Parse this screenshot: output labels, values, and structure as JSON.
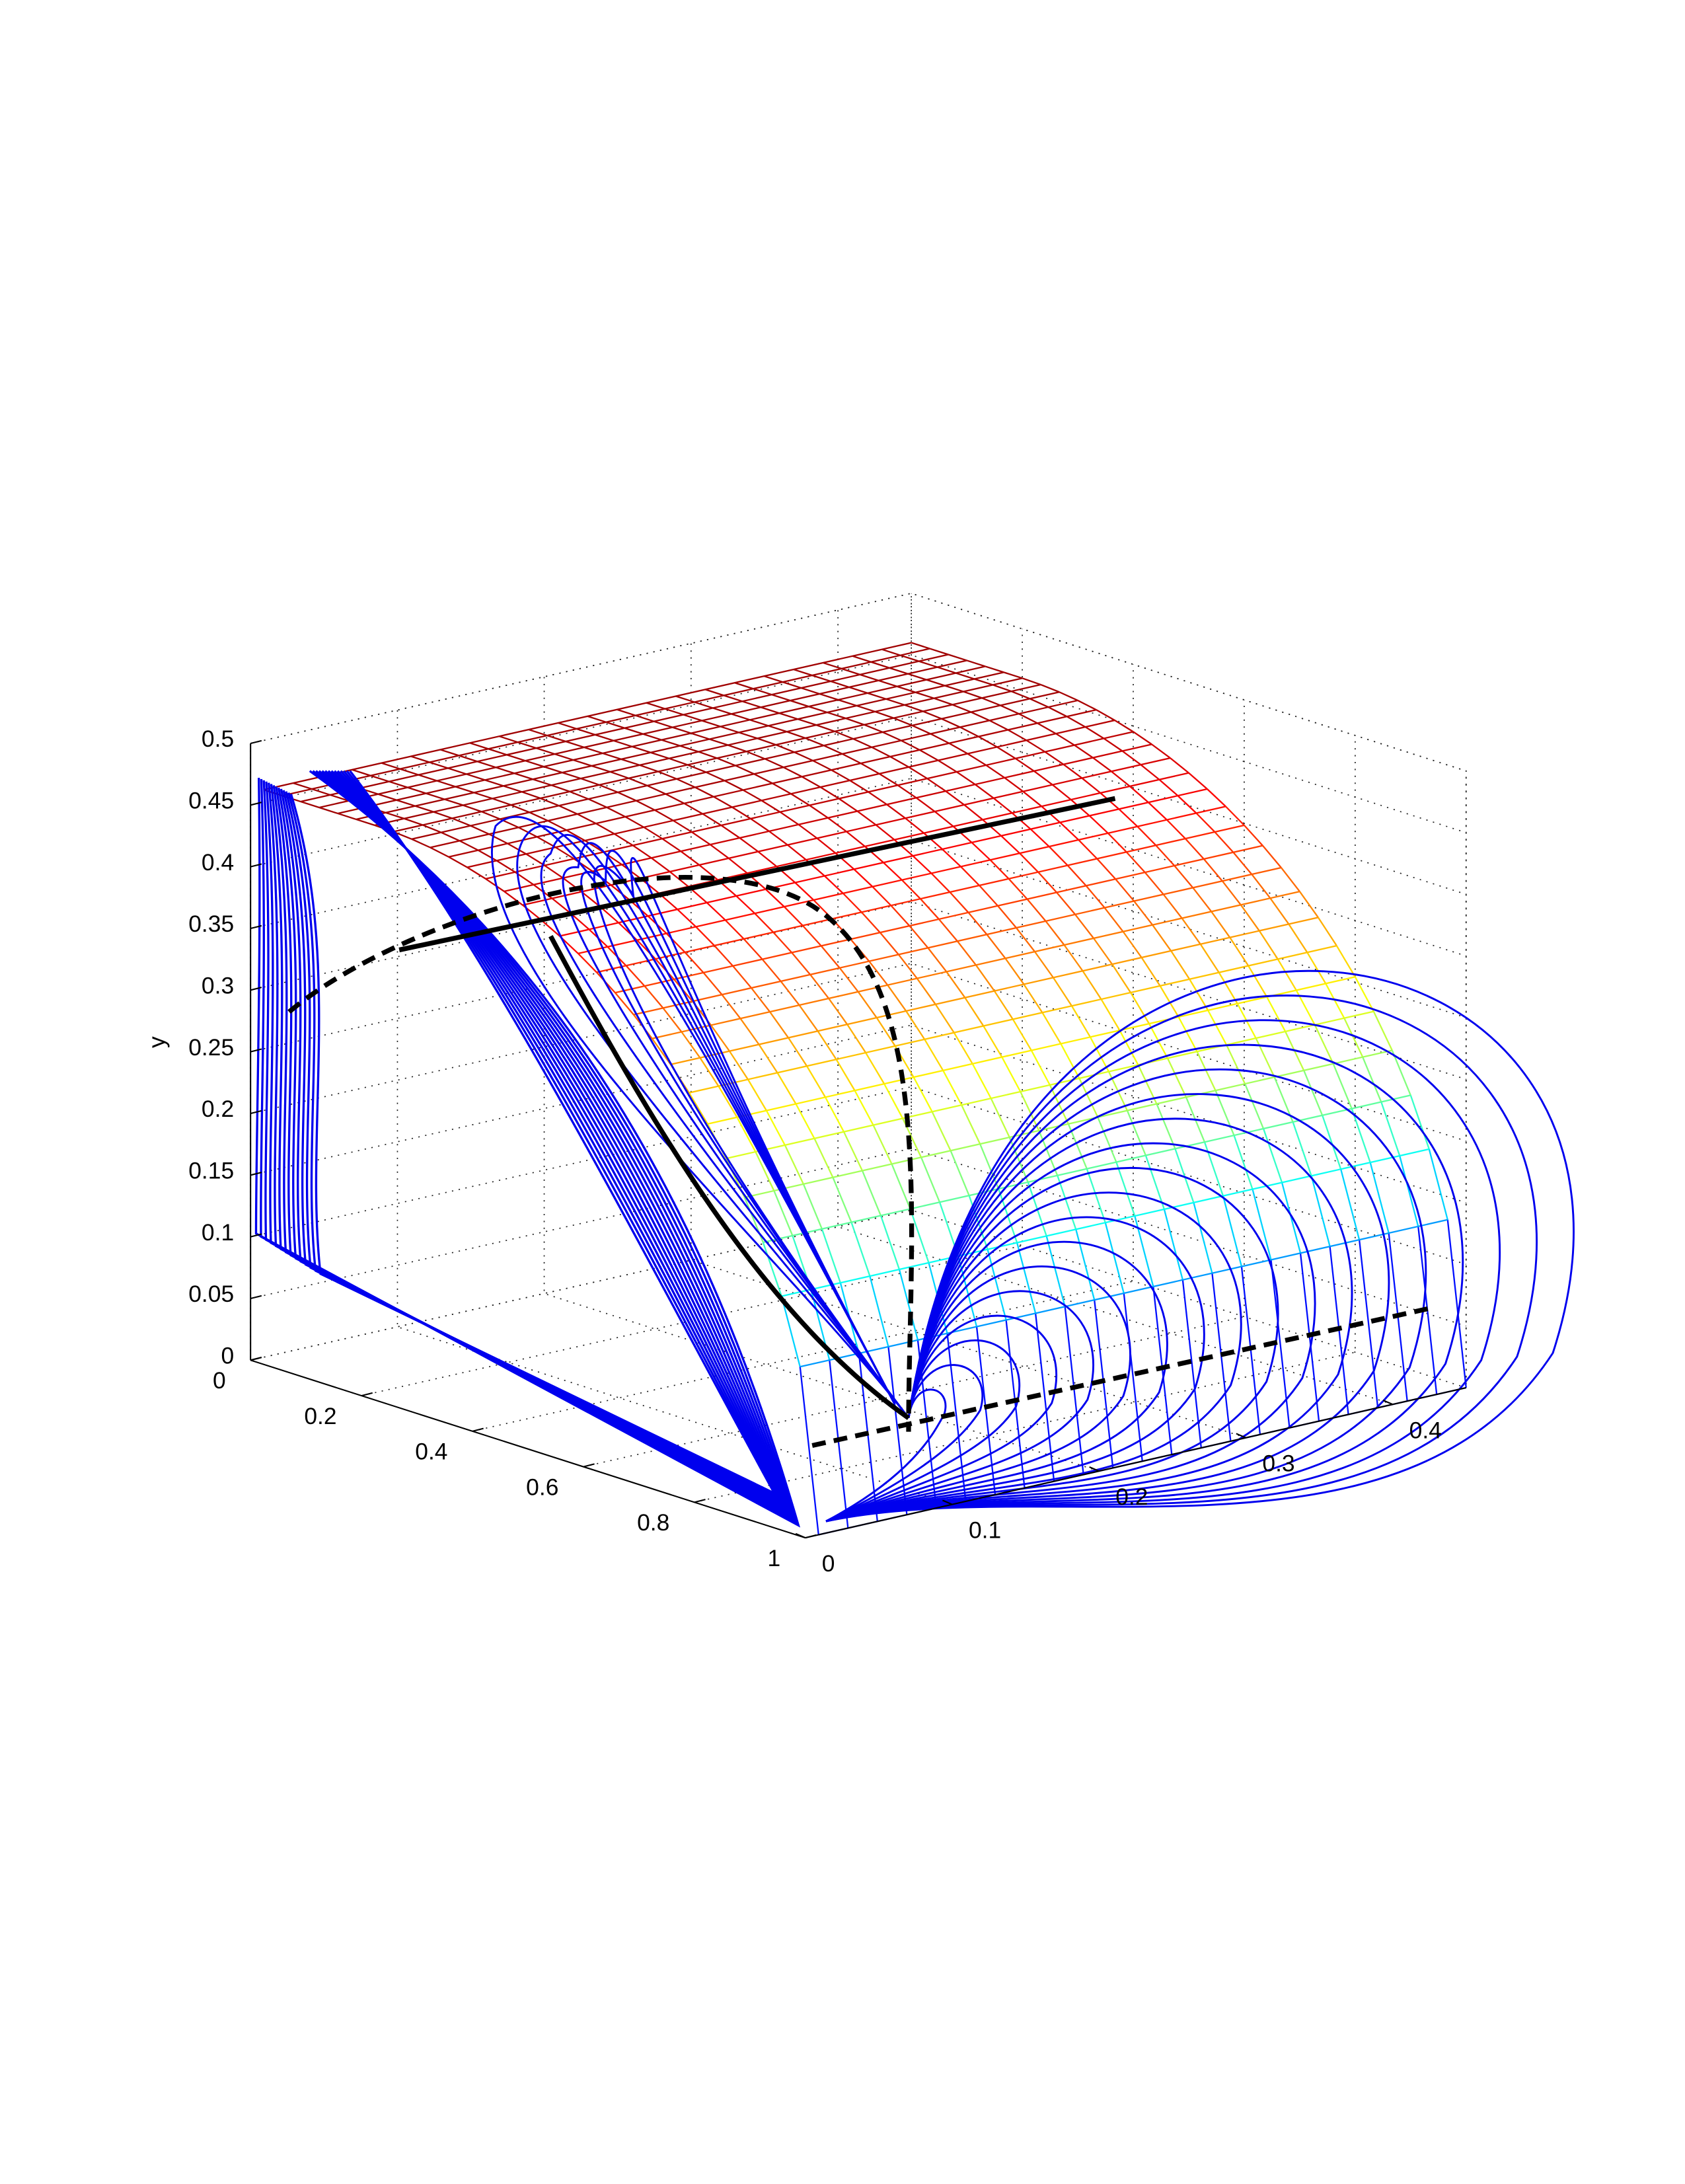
{
  "chart_data": {
    "type": "surface3d",
    "ylabel": "y",
    "xlim": [
      0,
      1
    ],
    "xticks": [
      0,
      0.2,
      0.4,
      0.6,
      0.8,
      1
    ],
    "ylim": [
      0,
      0.5
    ],
    "yticks": [
      0,
      0.05,
      0.1,
      0.15,
      0.2,
      0.25,
      0.3,
      0.35,
      0.4,
      0.45,
      0.5
    ],
    "zlim": [
      0,
      0.45
    ],
    "zticks": [
      0,
      0.1,
      0.2,
      0.3,
      0.4
    ],
    "grid": true,
    "colormap": "jet",
    "trajectory_color": "#0000ee"
  }
}
